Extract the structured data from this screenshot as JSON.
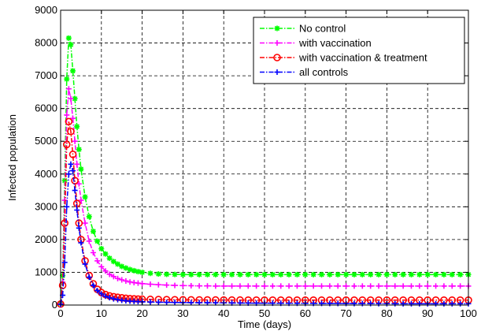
{
  "chart_data": {
    "type": "line",
    "title": "",
    "xlabel": "Time (days)",
    "ylabel": "Infected population",
    "xlim": [
      0,
      100
    ],
    "ylim": [
      0,
      9000
    ],
    "xticks": [
      0,
      10,
      20,
      30,
      40,
      50,
      60,
      70,
      80,
      90,
      100
    ],
    "yticks": [
      0,
      1000,
      2000,
      3000,
      4000,
      5000,
      6000,
      7000,
      8000,
      9000
    ],
    "grid": true,
    "legend_position": "top-right",
    "x": [
      0,
      0.5,
      1,
      1.5,
      2,
      2.5,
      3,
      3.5,
      4,
      4.5,
      5,
      6,
      7,
      8,
      9,
      10,
      11,
      12,
      13,
      14,
      15,
      16,
      17,
      18,
      19,
      20,
      22,
      24,
      26,
      28,
      30,
      32,
      34,
      36,
      38,
      40,
      42,
      44,
      46,
      48,
      50,
      52,
      54,
      56,
      58,
      60,
      62,
      64,
      66,
      68,
      70,
      72,
      74,
      76,
      78,
      80,
      82,
      84,
      86,
      88,
      90,
      92,
      94,
      96,
      98,
      100
    ],
    "series": [
      {
        "name": "No control",
        "color": "#00ff00",
        "marker": "star",
        "values": [
          50,
          900,
          3800,
          6900,
          8150,
          7950,
          7150,
          6300,
          5450,
          4750,
          4150,
          3300,
          2700,
          2250,
          1950,
          1720,
          1560,
          1430,
          1330,
          1250,
          1180,
          1130,
          1085,
          1050,
          1020,
          1000,
          970,
          950,
          940,
          935,
          930,
          930,
          930,
          930,
          930,
          930,
          930,
          930,
          930,
          930,
          930,
          930,
          930,
          930,
          930,
          930,
          930,
          930,
          930,
          930,
          930,
          930,
          930,
          930,
          930,
          930,
          930,
          930,
          930,
          930,
          930,
          930,
          930,
          930,
          930,
          930
        ]
      },
      {
        "name": "with vaccination",
        "color": "#ff00ff",
        "marker": "plus",
        "values": [
          40,
          700,
          3200,
          5800,
          6600,
          6300,
          5700,
          5000,
          4300,
          3700,
          3200,
          2500,
          1950,
          1600,
          1350,
          1170,
          1040,
          940,
          870,
          810,
          770,
          735,
          705,
          685,
          670,
          655,
          635,
          620,
          610,
          600,
          595,
          590,
          585,
          585,
          580,
          580,
          580,
          580,
          580,
          580,
          580,
          580,
          580,
          580,
          580,
          580,
          580,
          580,
          580,
          580,
          580,
          580,
          580,
          580,
          580,
          580,
          580,
          580,
          580,
          580,
          580,
          580,
          580,
          580,
          580,
          580
        ]
      },
      {
        "name": "with vaccination & treatment",
        "color": "#ff0000",
        "marker": "circle",
        "values": [
          30,
          600,
          2500,
          4900,
          5600,
          5300,
          4600,
          3800,
          3100,
          2500,
          2000,
          1350,
          900,
          650,
          480,
          380,
          320,
          280,
          255,
          235,
          220,
          205,
          195,
          188,
          182,
          178,
          172,
          168,
          165,
          162,
          160,
          158,
          156,
          155,
          154,
          153,
          152,
          151,
          150,
          150,
          150,
          150,
          150,
          150,
          150,
          150,
          150,
          150,
          150,
          150,
          150,
          150,
          150,
          150,
          150,
          150,
          150,
          150,
          150,
          150,
          150,
          150,
          150,
          150,
          150,
          150
        ]
      },
      {
        "name": "all controls",
        "color": "#0000ff",
        "marker": "plus",
        "values": [
          20,
          300,
          1300,
          3000,
          4000,
          4300,
          4100,
          3500,
          2900,
          2350,
          1900,
          1250,
          850,
          600,
          440,
          340,
          270,
          225,
          190,
          165,
          145,
          130,
          120,
          112,
          106,
          100,
          92,
          86,
          82,
          79,
          76,
          74,
          72,
          70,
          68,
          66,
          64,
          62,
          60,
          58,
          57,
          56,
          55,
          54,
          53,
          52,
          51,
          50,
          49,
          48,
          47,
          46,
          45,
          44,
          43,
          42,
          41,
          40,
          40,
          40,
          40,
          40,
          40,
          40,
          40,
          40
        ]
      }
    ]
  }
}
